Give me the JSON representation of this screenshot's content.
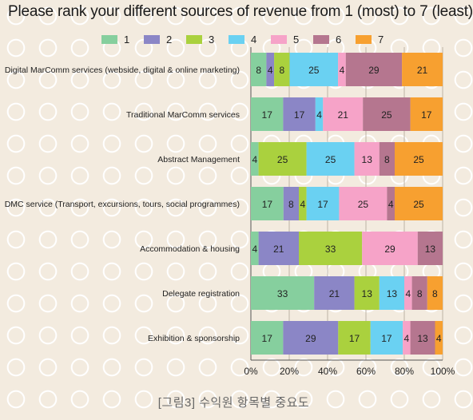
{
  "title": "Please rank your different sources of revenue from 1 (most) to 7 (least)",
  "caption": "[그림3] 수익원 항목별 중요도",
  "chart_data": {
    "type": "bar",
    "orientation": "horizontal",
    "stacked": true,
    "percent_stacked": true,
    "categories": [
      "Digital MarComm services (webside, digital & online marketing)",
      "Traditional MarComm services",
      "Abstract Management",
      "DMC service (Transport, excursions, tours, social programmes)",
      "Accommodation & housing",
      "Delegate registration",
      "Exhibition & sponsorship"
    ],
    "series": [
      {
        "name": "1",
        "color": "#86cf9e",
        "values": [
          8,
          17,
          4,
          17,
          4,
          33,
          17
        ]
      },
      {
        "name": "2",
        "color": "#8b86c6",
        "values": [
          4,
          17,
          0,
          8,
          21,
          21,
          29
        ]
      },
      {
        "name": "3",
        "color": "#aad13e",
        "values": [
          8,
          0,
          25,
          4,
          33,
          13,
          17
        ]
      },
      {
        "name": "4",
        "color": "#6ad1f2",
        "values": [
          25,
          4,
          25,
          17,
          0,
          13,
          17
        ]
      },
      {
        "name": "5",
        "color": "#f6a3c8",
        "values": [
          4,
          21,
          13,
          25,
          29,
          4,
          4
        ]
      },
      {
        "name": "6",
        "color": "#b5768f",
        "values": [
          29,
          25,
          8,
          4,
          13,
          8,
          13
        ]
      },
      {
        "name": "7",
        "color": "#f7a030",
        "values": [
          21,
          17,
          25,
          25,
          0,
          8,
          4
        ]
      }
    ],
    "xticks": [
      "0%",
      "20%",
      "40%",
      "60%",
      "80%",
      "100%"
    ],
    "xlim": [
      0,
      100
    ],
    "grid": true,
    "legend_position": "top"
  }
}
